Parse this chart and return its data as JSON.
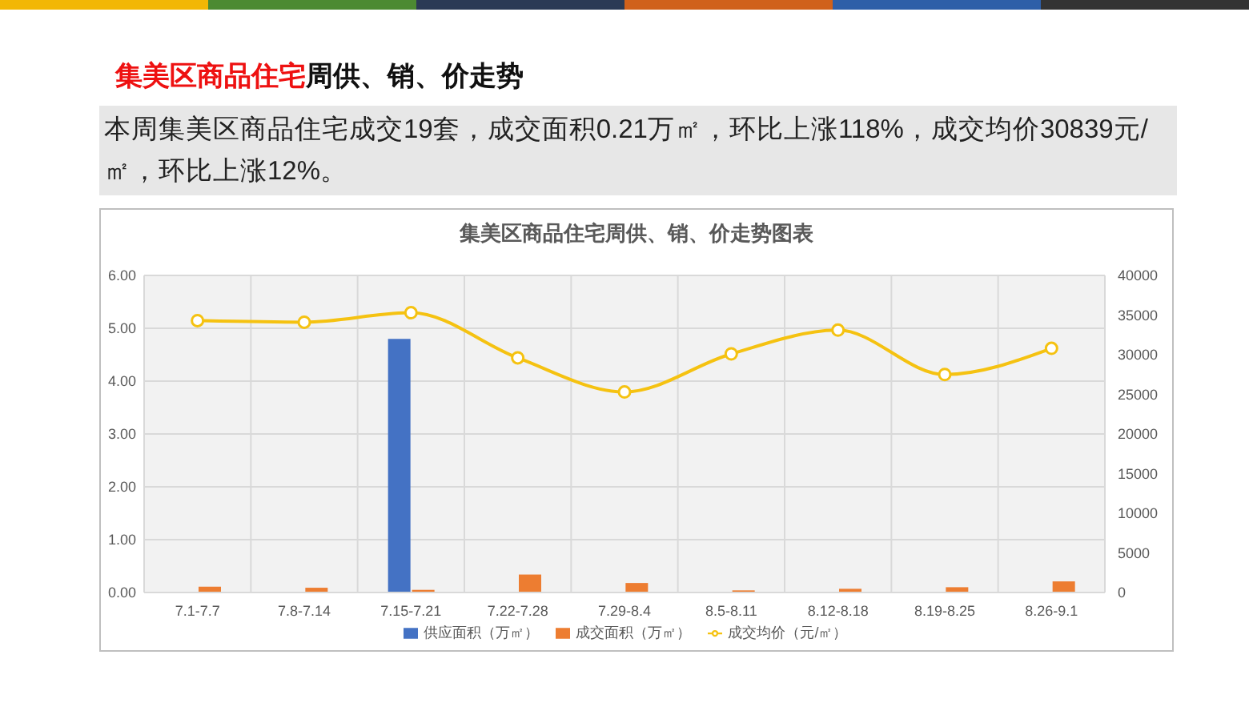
{
  "chart_data": {
    "type": "bar",
    "title": "集美区商品住宅周供、销、价走势图表",
    "annotations": [
      "集美区商品住宅",
      "周供、销、价走势",
      "本周集美区商品住宅成交19套，成交面积0.21万㎡，环比上涨118%，成交均价30839元/㎡，环比上涨12%。"
    ],
    "categories": [
      "7.1-7.7",
      "7.8-7.14",
      "7.15-7.21",
      "7.22-7.28",
      "7.29-8.4",
      "8.5-8.11",
      "8.12-8.18",
      "8.19-8.25",
      "8.26-9.1"
    ],
    "series": [
      {
        "name": "供应面积（万㎡）",
        "color": "#4472c4",
        "values": [
          null,
          null,
          4.8,
          null,
          null,
          null,
          null,
          null,
          null
        ]
      },
      {
        "name": "成交面积（万㎡）",
        "color": "#ed7d31",
        "values": [
          0.11,
          0.09,
          0.05,
          0.34,
          0.18,
          0.04,
          0.07,
          0.1,
          0.21
        ]
      },
      {
        "name": "成交均价（元/㎡）",
        "type": "line",
        "axis": "y2",
        "color": "#f5c211",
        "values": [
          34300,
          34100,
          35300,
          29600,
          25300,
          30100,
          33100,
          27500,
          30800
        ]
      }
    ],
    "ylim": [
      0,
      6
    ],
    "yticks": [
      {
        "value": 0,
        "label": "0.00"
      },
      {
        "value": 1,
        "label": "1.00"
      },
      {
        "value": 2,
        "label": "2.00"
      },
      {
        "value": 3,
        "label": "3.00"
      },
      {
        "value": 4,
        "label": "4.00"
      },
      {
        "value": 5,
        "label": "5.00"
      },
      {
        "value": 6,
        "label": "6.00"
      }
    ],
    "y2lim": [
      0,
      40000
    ],
    "y2ticks": [
      0,
      5000,
      10000,
      15000,
      20000,
      25000,
      30000,
      35000,
      40000
    ],
    "grid": true,
    "legend": "bottom",
    "marker": "circle"
  }
}
